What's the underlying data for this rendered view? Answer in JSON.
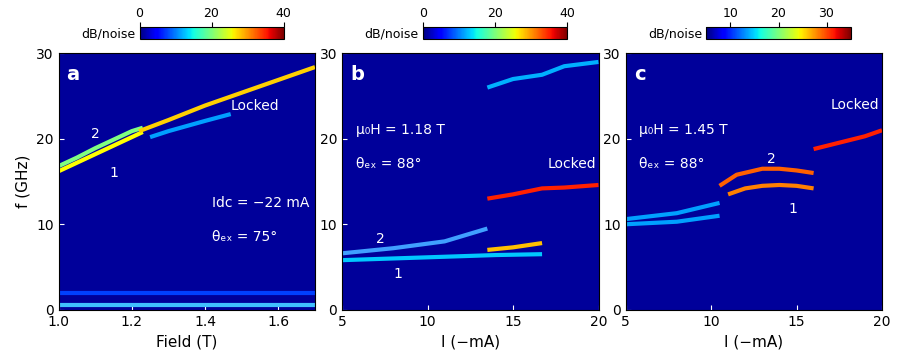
{
  "chart_data": [
    {
      "type": "line",
      "panel": "a",
      "xlabel": "Field (T)",
      "ylabel": "f (GHz)",
      "xlim": [
        1.0,
        1.7
      ],
      "xticks": [
        1.0,
        1.2,
        1.4,
        1.6
      ],
      "ylim": [
        0,
        30
      ],
      "yticks": [
        0,
        10,
        20,
        30
      ],
      "colorbar": {
        "label": "dB/noise",
        "range": [
          0,
          40
        ],
        "ticks": [
          0,
          20,
          40
        ]
      },
      "series": [
        {
          "x": [
            1.0,
            1.05,
            1.1,
            1.15,
            1.2,
            1.23
          ],
          "values": [
            16.2,
            17.2,
            18.2,
            19.2,
            20.2,
            20.8
          ],
          "color": "#ffff00"
        },
        {
          "x": [
            1.0,
            1.05,
            1.1,
            1.15,
            1.2,
            1.23
          ],
          "values": [
            16.8,
            17.8,
            18.9,
            19.9,
            20.9,
            21.3
          ],
          "color": "#80ff80"
        },
        {
          "x": [
            1.22,
            1.3,
            1.4,
            1.5,
            1.6,
            1.7
          ],
          "values": [
            20.9,
            22.2,
            23.9,
            25.4,
            26.9,
            28.4
          ],
          "color": "#ffd000"
        },
        {
          "x": [
            1.25,
            1.3,
            1.4,
            1.47
          ],
          "values": [
            20.2,
            20.9,
            22.1,
            22.9
          ],
          "color": "#00a0ff"
        },
        {
          "x": [
            1.0,
            1.7
          ],
          "values": [
            0.5,
            0.5
          ],
          "color": "#40c0ff"
        },
        {
          "x": [
            1.0,
            1.7
          ],
          "values": [
            2.0,
            2.0
          ],
          "color": "#0040ff"
        }
      ],
      "annotations": [
        {
          "text": "a",
          "x": 1.02,
          "y": 27.5
        },
        {
          "text": "2",
          "x": 1.09,
          "y": 20.6
        },
        {
          "text": "1",
          "x": 1.14,
          "y": 16.0
        },
        {
          "text": "Locked",
          "x": 1.47,
          "y": 23.8
        },
        {
          "text": "Idc = −22 mA",
          "x": 1.42,
          "y": 12.5
        },
        {
          "text": "θₑₓ = 75°",
          "x": 1.42,
          "y": 8.5
        }
      ]
    },
    {
      "type": "line",
      "panel": "b",
      "xlabel": "I (−mA)",
      "xlim": [
        5,
        20
      ],
      "xticks": [
        5,
        10,
        15,
        20
      ],
      "ylim": [
        0,
        30
      ],
      "yticks": [
        0,
        10,
        20,
        30
      ],
      "colorbar": {
        "label": "dB/noise",
        "range": [
          0,
          40
        ],
        "ticks": [
          0,
          20,
          40
        ]
      },
      "series": [
        {
          "x": [
            5,
            8,
            11,
            14,
            16.7
          ],
          "values": [
            5.8,
            6.0,
            6.2,
            6.4,
            6.5
          ],
          "color": "#00c8ff"
        },
        {
          "x": [
            5,
            8,
            11,
            13.5
          ],
          "values": [
            6.6,
            7.2,
            8.0,
            9.5
          ],
          "color": "#40a0ff"
        },
        {
          "x": [
            13.5,
            15,
            16.7
          ],
          "values": [
            7.0,
            7.3,
            7.8
          ],
          "color": "#ffc000"
        },
        {
          "x": [
            13.5,
            15,
            16.7,
            18,
            20
          ],
          "values": [
            13.0,
            13.5,
            14.2,
            14.3,
            14.6
          ],
          "color": "#ff2000"
        },
        {
          "x": [
            13.5,
            15,
            16.7,
            18,
            20
          ],
          "values": [
            26.0,
            27.0,
            27.5,
            28.5,
            29.0
          ],
          "color": "#00b0ff"
        }
      ],
      "annotations": [
        {
          "text": "b",
          "x": 5.5,
          "y": 27.5
        },
        {
          "text": "μ₀H = 1.18 T",
          "x": 5.8,
          "y": 21.0
        },
        {
          "text": "θₑₓ = 88°",
          "x": 5.8,
          "y": 17.0
        },
        {
          "text": "2",
          "x": 7.0,
          "y": 8.3
        },
        {
          "text": "1",
          "x": 8.0,
          "y": 4.2
        },
        {
          "text": "Locked",
          "x": 17.0,
          "y": 17.0
        }
      ]
    },
    {
      "type": "line",
      "panel": "c",
      "xlabel": "I (−mA)",
      "xlim": [
        5,
        20
      ],
      "xticks": [
        5,
        10,
        15,
        20
      ],
      "ylim": [
        0,
        30
      ],
      "yticks": [
        0,
        10,
        20,
        30
      ],
      "colorbar": {
        "label": "dB/noise",
        "range": [
          5,
          35
        ],
        "ticks": [
          10,
          20,
          30
        ]
      },
      "series": [
        {
          "x": [
            5,
            8,
            10.5
          ],
          "values": [
            10.0,
            10.3,
            11.0
          ],
          "color": "#00a0ff"
        },
        {
          "x": [
            5,
            8,
            10.5
          ],
          "values": [
            10.6,
            11.3,
            12.5
          ],
          "color": "#00a0ff"
        },
        {
          "x": [
            11,
            12,
            13,
            14,
            15,
            16
          ],
          "values": [
            13.5,
            14.2,
            14.5,
            14.6,
            14.5,
            14.2
          ],
          "color": "#ff8000"
        },
        {
          "x": [
            10.5,
            11.5,
            13,
            14,
            15,
            16
          ],
          "values": [
            14.5,
            15.8,
            16.5,
            16.5,
            16.3,
            16.0
          ],
          "color": "#ff6000"
        },
        {
          "x": [
            16,
            17,
            18,
            19,
            20
          ],
          "values": [
            18.8,
            19.3,
            19.8,
            20.3,
            21.0
          ],
          "color": "#ff2000"
        }
      ],
      "annotations": [
        {
          "text": "c",
          "x": 5.5,
          "y": 27.5
        },
        {
          "text": "μ₀H = 1.45 T",
          "x": 5.8,
          "y": 21.0
        },
        {
          "text": "θₑₓ = 88°",
          "x": 5.8,
          "y": 17.0
        },
        {
          "text": "2",
          "x": 13.3,
          "y": 17.6
        },
        {
          "text": "1",
          "x": 14.5,
          "y": 11.8
        },
        {
          "text": "Locked",
          "x": 17.0,
          "y": 24.0
        }
      ]
    }
  ]
}
